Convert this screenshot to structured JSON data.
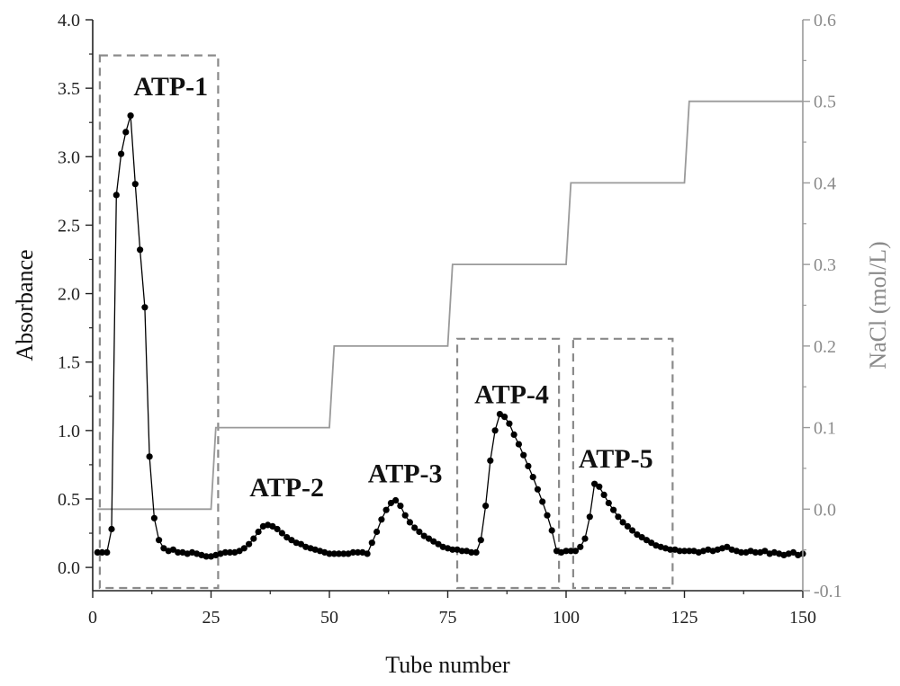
{
  "chart_data": {
    "type": "line",
    "xlabel": "Tube number",
    "ylabel": "Absorbance",
    "y2label": "NaCl (mol/L)",
    "xlim": [
      0,
      150
    ],
    "ylim": [
      -0.17,
      4.0
    ],
    "y2lim": [
      -0.1,
      0.6
    ],
    "x_ticks": [
      "0",
      "25",
      "50",
      "75",
      "100",
      "125",
      "150"
    ],
    "y_ticks": [
      "0.0",
      "0.5",
      "1.0",
      "1.5",
      "2.0",
      "2.5",
      "3.0",
      "3.5",
      "4.0"
    ],
    "y2_ticks": [
      "-0.1",
      "0.0",
      "0.1",
      "0.2",
      "0.3",
      "0.4",
      "0.5",
      "0.6"
    ],
    "grid": false,
    "legend": "none",
    "colors": {
      "absorbance": "#000000",
      "nacl": "#9a9a9a",
      "boxes": "#8a8a8a"
    },
    "series": [
      {
        "axis": "left",
        "marker": "circle",
        "points": [
          [
            1,
            0.11
          ],
          [
            2,
            0.11
          ],
          [
            3,
            0.11
          ],
          [
            4,
            0.28
          ],
          [
            5,
            2.72
          ],
          [
            6,
            3.02
          ],
          [
            7,
            3.18
          ],
          [
            8,
            3.3
          ],
          [
            9,
            2.8
          ],
          [
            10,
            2.32
          ],
          [
            11,
            1.9
          ],
          [
            12,
            0.81
          ],
          [
            13,
            0.36
          ],
          [
            14,
            0.2
          ],
          [
            15,
            0.14
          ],
          [
            16,
            0.12
          ],
          [
            17,
            0.13
          ],
          [
            18,
            0.11
          ],
          [
            19,
            0.11
          ],
          [
            20,
            0.1
          ],
          [
            21,
            0.11
          ],
          [
            22,
            0.1
          ],
          [
            23,
            0.09
          ],
          [
            24,
            0.08
          ],
          [
            25,
            0.08
          ],
          [
            26,
            0.09
          ],
          [
            27,
            0.1
          ],
          [
            28,
            0.11
          ],
          [
            29,
            0.11
          ],
          [
            30,
            0.11
          ],
          [
            31,
            0.12
          ],
          [
            32,
            0.14
          ],
          [
            33,
            0.17
          ],
          [
            34,
            0.21
          ],
          [
            35,
            0.26
          ],
          [
            36,
            0.3
          ],
          [
            37,
            0.31
          ],
          [
            38,
            0.3
          ],
          [
            39,
            0.28
          ],
          [
            40,
            0.25
          ],
          [
            41,
            0.22
          ],
          [
            42,
            0.2
          ],
          [
            43,
            0.18
          ],
          [
            44,
            0.17
          ],
          [
            45,
            0.15
          ],
          [
            46,
            0.14
          ],
          [
            47,
            0.13
          ],
          [
            48,
            0.12
          ],
          [
            49,
            0.11
          ],
          [
            50,
            0.1
          ],
          [
            51,
            0.1
          ],
          [
            52,
            0.1
          ],
          [
            53,
            0.1
          ],
          [
            54,
            0.1
          ],
          [
            55,
            0.11
          ],
          [
            56,
            0.11
          ],
          [
            57,
            0.11
          ],
          [
            58,
            0.1
          ],
          [
            59,
            0.18
          ],
          [
            60,
            0.26
          ],
          [
            61,
            0.35
          ],
          [
            62,
            0.42
          ],
          [
            63,
            0.47
          ],
          [
            64,
            0.49
          ],
          [
            65,
            0.45
          ],
          [
            66,
            0.38
          ],
          [
            67,
            0.33
          ],
          [
            68,
            0.29
          ],
          [
            69,
            0.26
          ],
          [
            70,
            0.23
          ],
          [
            71,
            0.21
          ],
          [
            72,
            0.19
          ],
          [
            73,
            0.17
          ],
          [
            74,
            0.15
          ],
          [
            75,
            0.14
          ],
          [
            76,
            0.13
          ],
          [
            77,
            0.13
          ],
          [
            78,
            0.12
          ],
          [
            79,
            0.12
          ],
          [
            80,
            0.11
          ],
          [
            81,
            0.11
          ],
          [
            82,
            0.2
          ],
          [
            83,
            0.45
          ],
          [
            84,
            0.78
          ],
          [
            85,
            1.0
          ],
          [
            86,
            1.12
          ],
          [
            87,
            1.1
          ],
          [
            88,
            1.05
          ],
          [
            89,
            0.97
          ],
          [
            90,
            0.9
          ],
          [
            91,
            0.82
          ],
          [
            92,
            0.74
          ],
          [
            93,
            0.66
          ],
          [
            94,
            0.57
          ],
          [
            95,
            0.48
          ],
          [
            96,
            0.38
          ],
          [
            97,
            0.27
          ],
          [
            98,
            0.12
          ],
          [
            99,
            0.11
          ],
          [
            100,
            0.12
          ],
          [
            101,
            0.12
          ],
          [
            102,
            0.12
          ],
          [
            103,
            0.15
          ],
          [
            104,
            0.21
          ],
          [
            105,
            0.37
          ],
          [
            106,
            0.61
          ],
          [
            107,
            0.59
          ],
          [
            108,
            0.53
          ],
          [
            109,
            0.47
          ],
          [
            110,
            0.42
          ],
          [
            111,
            0.37
          ],
          [
            112,
            0.33
          ],
          [
            113,
            0.3
          ],
          [
            114,
            0.27
          ],
          [
            115,
            0.24
          ],
          [
            116,
            0.22
          ],
          [
            117,
            0.2
          ],
          [
            118,
            0.18
          ],
          [
            119,
            0.16
          ],
          [
            120,
            0.15
          ],
          [
            121,
            0.14
          ],
          [
            122,
            0.13
          ],
          [
            123,
            0.13
          ],
          [
            124,
            0.12
          ],
          [
            125,
            0.12
          ],
          [
            126,
            0.12
          ],
          [
            127,
            0.12
          ],
          [
            128,
            0.11
          ],
          [
            129,
            0.12
          ],
          [
            130,
            0.13
          ],
          [
            131,
            0.12
          ],
          [
            132,
            0.13
          ],
          [
            133,
            0.14
          ],
          [
            134,
            0.15
          ],
          [
            135,
            0.13
          ],
          [
            136,
            0.12
          ],
          [
            137,
            0.11
          ],
          [
            138,
            0.11
          ],
          [
            139,
            0.12
          ],
          [
            140,
            0.11
          ],
          [
            141,
            0.11
          ],
          [
            142,
            0.12
          ],
          [
            143,
            0.1
          ],
          [
            144,
            0.11
          ],
          [
            145,
            0.1
          ],
          [
            146,
            0.09
          ],
          [
            147,
            0.1
          ],
          [
            148,
            0.11
          ],
          [
            149,
            0.09
          ],
          [
            150,
            0.1
          ]
        ]
      },
      {
        "axis": "right",
        "marker": "none",
        "step": true,
        "points": [
          [
            1,
            0.0
          ],
          [
            25,
            0.0
          ],
          [
            26,
            0.1
          ],
          [
            50,
            0.1
          ],
          [
            51,
            0.2
          ],
          [
            75,
            0.2
          ],
          [
            76,
            0.3
          ],
          [
            100,
            0.3
          ],
          [
            101,
            0.4
          ],
          [
            125,
            0.4
          ],
          [
            126,
            0.5
          ],
          [
            150,
            0.5
          ]
        ]
      }
    ],
    "annotations": [
      {
        "text": "ATP-1",
        "x": 16.5,
        "y": 3.45
      },
      {
        "text": "ATP-2",
        "x": 41,
        "y": 0.52
      },
      {
        "text": "ATP-3",
        "x": 66,
        "y": 0.62
      },
      {
        "text": "ATP-4",
        "x": 88.5,
        "y": 1.2
      },
      {
        "text": "ATP-5",
        "x": 110.5,
        "y": 0.73
      }
    ],
    "fraction_boxes": [
      {
        "x0": 1.5,
        "x1": 26.5,
        "y0": -0.17,
        "y1": 3.74
      },
      {
        "x0": 77,
        "x1": 98.5,
        "y0": -0.17,
        "y1": 1.67
      },
      {
        "x0": 101.5,
        "x1": 122.5,
        "y0": -0.17,
        "y1": 1.67
      }
    ]
  }
}
